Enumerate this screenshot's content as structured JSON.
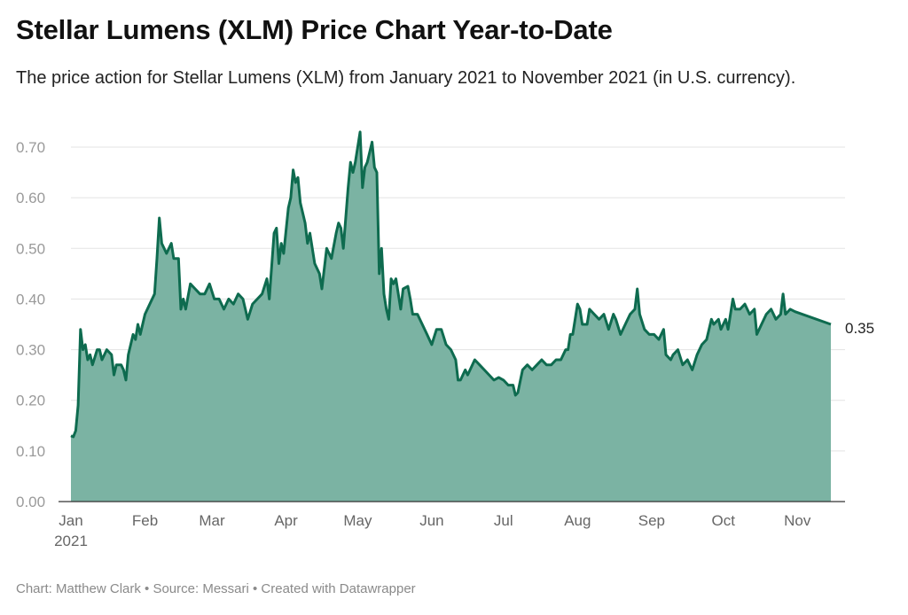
{
  "header": {
    "title": "Stellar Lumens (XLM) Price Chart Year-to-Date",
    "subtitle": "The price action for Stellar Lumens (XLM) from January 2021 to November 2021 (in U.S. currency)."
  },
  "footer": {
    "text": "Chart: Matthew Clark • Source: Messari • Created with Datawrapper"
  },
  "colors": {
    "line": "#0e6b4f",
    "area": "#7bb3a3",
    "grid": "#e3e3e3",
    "axis": "#333333"
  },
  "chart_data": {
    "type": "area",
    "title": "Stellar Lumens (XLM) Price Chart Year-to-Date",
    "xlabel": "",
    "ylabel": "",
    "ylim": [
      0,
      0.7
    ],
    "grid": true,
    "y_ticks": [
      0,
      0.1,
      0.2,
      0.3,
      0.4,
      0.5,
      0.6,
      0.7
    ],
    "y_tick_labels": [
      "0.00",
      "0.10",
      "0.20",
      "0.30",
      "0.40",
      "0.50",
      "0.60",
      "0.70"
    ],
    "x_ticks": [
      {
        "date": "2021-01-01",
        "label": "Jan",
        "sublabel": "2021"
      },
      {
        "date": "2021-02-01",
        "label": "Feb"
      },
      {
        "date": "2021-03-01",
        "label": "Mar"
      },
      {
        "date": "2021-04-01",
        "label": "Apr"
      },
      {
        "date": "2021-05-01",
        "label": "May"
      },
      {
        "date": "2021-06-01",
        "label": "Jun"
      },
      {
        "date": "2021-07-01",
        "label": "Jul"
      },
      {
        "date": "2021-08-01",
        "label": "Aug"
      },
      {
        "date": "2021-09-01",
        "label": "Sep"
      },
      {
        "date": "2021-10-01",
        "label": "Oct"
      },
      {
        "date": "2021-11-01",
        "label": "Nov"
      }
    ],
    "end_label": "0.35",
    "series": [
      {
        "points": [
          [
            "2021-01-01",
            0.13
          ],
          [
            "2021-01-02",
            0.128
          ],
          [
            "2021-01-03",
            0.14
          ],
          [
            "2021-01-04",
            0.19
          ],
          [
            "2021-01-05",
            0.34
          ],
          [
            "2021-01-06",
            0.3
          ],
          [
            "2021-01-07",
            0.31
          ],
          [
            "2021-01-08",
            0.28
          ],
          [
            "2021-01-09",
            0.29
          ],
          [
            "2021-01-10",
            0.27
          ],
          [
            "2021-01-12",
            0.3
          ],
          [
            "2021-01-13",
            0.3
          ],
          [
            "2021-01-14",
            0.28
          ],
          [
            "2021-01-16",
            0.3
          ],
          [
            "2021-01-18",
            0.29
          ],
          [
            "2021-01-19",
            0.25
          ],
          [
            "2021-01-20",
            0.27
          ],
          [
            "2021-01-22",
            0.27
          ],
          [
            "2021-01-23",
            0.26
          ],
          [
            "2021-01-24",
            0.24
          ],
          [
            "2021-01-25",
            0.29
          ],
          [
            "2021-01-27",
            0.33
          ],
          [
            "2021-01-28",
            0.32
          ],
          [
            "2021-01-29",
            0.35
          ],
          [
            "2021-01-30",
            0.33
          ],
          [
            "2021-02-01",
            0.37
          ],
          [
            "2021-02-03",
            0.39
          ],
          [
            "2021-02-05",
            0.41
          ],
          [
            "2021-02-06",
            0.48
          ],
          [
            "2021-02-07",
            0.56
          ],
          [
            "2021-02-08",
            0.51
          ],
          [
            "2021-02-10",
            0.49
          ],
          [
            "2021-02-12",
            0.51
          ],
          [
            "2021-02-13",
            0.48
          ],
          [
            "2021-02-15",
            0.48
          ],
          [
            "2021-02-16",
            0.38
          ],
          [
            "2021-02-17",
            0.4
          ],
          [
            "2021-02-18",
            0.38
          ],
          [
            "2021-02-20",
            0.43
          ],
          [
            "2021-02-22",
            0.42
          ],
          [
            "2021-02-24",
            0.41
          ],
          [
            "2021-02-26",
            0.41
          ],
          [
            "2021-02-28",
            0.43
          ],
          [
            "2021-03-02",
            0.4
          ],
          [
            "2021-03-04",
            0.4
          ],
          [
            "2021-03-06",
            0.38
          ],
          [
            "2021-03-08",
            0.4
          ],
          [
            "2021-03-10",
            0.39
          ],
          [
            "2021-03-12",
            0.41
          ],
          [
            "2021-03-14",
            0.4
          ],
          [
            "2021-03-16",
            0.36
          ],
          [
            "2021-03-18",
            0.39
          ],
          [
            "2021-03-20",
            0.4
          ],
          [
            "2021-03-22",
            0.41
          ],
          [
            "2021-03-24",
            0.44
          ],
          [
            "2021-03-25",
            0.4
          ],
          [
            "2021-03-27",
            0.53
          ],
          [
            "2021-03-28",
            0.54
          ],
          [
            "2021-03-29",
            0.47
          ],
          [
            "2021-03-30",
            0.51
          ],
          [
            "2021-03-31",
            0.49
          ],
          [
            "2021-04-02",
            0.58
          ],
          [
            "2021-04-03",
            0.6
          ],
          [
            "2021-04-04",
            0.655
          ],
          [
            "2021-04-05",
            0.63
          ],
          [
            "2021-04-06",
            0.64
          ],
          [
            "2021-04-07",
            0.59
          ],
          [
            "2021-04-09",
            0.55
          ],
          [
            "2021-04-10",
            0.51
          ],
          [
            "2021-04-11",
            0.53
          ],
          [
            "2021-04-13",
            0.47
          ],
          [
            "2021-04-15",
            0.45
          ],
          [
            "2021-04-16",
            0.42
          ],
          [
            "2021-04-18",
            0.5
          ],
          [
            "2021-04-20",
            0.48
          ],
          [
            "2021-04-22",
            0.53
          ],
          [
            "2021-04-23",
            0.55
          ],
          [
            "2021-04-24",
            0.54
          ],
          [
            "2021-04-25",
            0.5
          ],
          [
            "2021-04-27",
            0.62
          ],
          [
            "2021-04-28",
            0.67
          ],
          [
            "2021-04-29",
            0.65
          ],
          [
            "2021-04-30",
            0.67
          ],
          [
            "2021-05-02",
            0.73
          ],
          [
            "2021-05-03",
            0.62
          ],
          [
            "2021-05-04",
            0.66
          ],
          [
            "2021-05-05",
            0.67
          ],
          [
            "2021-05-06",
            0.69
          ],
          [
            "2021-05-07",
            0.71
          ],
          [
            "2021-05-08",
            0.66
          ],
          [
            "2021-05-09",
            0.65
          ],
          [
            "2021-05-10",
            0.45
          ],
          [
            "2021-05-11",
            0.5
          ],
          [
            "2021-05-12",
            0.41
          ],
          [
            "2021-05-13",
            0.38
          ],
          [
            "2021-05-14",
            0.36
          ],
          [
            "2021-05-15",
            0.44
          ],
          [
            "2021-05-16",
            0.43
          ],
          [
            "2021-05-17",
            0.44
          ],
          [
            "2021-05-18",
            0.41
          ],
          [
            "2021-05-19",
            0.38
          ],
          [
            "2021-05-20",
            0.42
          ],
          [
            "2021-05-22",
            0.425
          ],
          [
            "2021-05-23",
            0.4
          ],
          [
            "2021-05-24",
            0.37
          ],
          [
            "2021-05-26",
            0.37
          ],
          [
            "2021-05-28",
            0.35
          ],
          [
            "2021-05-30",
            0.33
          ],
          [
            "2021-06-01",
            0.31
          ],
          [
            "2021-06-03",
            0.34
          ],
          [
            "2021-06-05",
            0.34
          ],
          [
            "2021-06-07",
            0.31
          ],
          [
            "2021-06-09",
            0.3
          ],
          [
            "2021-06-11",
            0.28
          ],
          [
            "2021-06-12",
            0.24
          ],
          [
            "2021-06-13",
            0.24
          ],
          [
            "2021-06-15",
            0.26
          ],
          [
            "2021-06-16",
            0.25
          ],
          [
            "2021-06-17",
            0.26
          ],
          [
            "2021-06-19",
            0.28
          ],
          [
            "2021-06-21",
            0.27
          ],
          [
            "2021-06-23",
            0.26
          ],
          [
            "2021-06-25",
            0.25
          ],
          [
            "2021-06-27",
            0.24
          ],
          [
            "2021-06-29",
            0.245
          ],
          [
            "2021-07-01",
            0.24
          ],
          [
            "2021-07-03",
            0.23
          ],
          [
            "2021-07-05",
            0.23
          ],
          [
            "2021-07-06",
            0.21
          ],
          [
            "2021-07-07",
            0.215
          ],
          [
            "2021-07-09",
            0.26
          ],
          [
            "2021-07-11",
            0.27
          ],
          [
            "2021-07-13",
            0.26
          ],
          [
            "2021-07-15",
            0.27
          ],
          [
            "2021-07-17",
            0.28
          ],
          [
            "2021-07-19",
            0.27
          ],
          [
            "2021-07-21",
            0.27
          ],
          [
            "2021-07-23",
            0.28
          ],
          [
            "2021-07-25",
            0.28
          ],
          [
            "2021-07-27",
            0.3
          ],
          [
            "2021-07-28",
            0.3
          ],
          [
            "2021-07-29",
            0.33
          ],
          [
            "2021-07-30",
            0.33
          ],
          [
            "2021-08-01",
            0.39
          ],
          [
            "2021-08-02",
            0.38
          ],
          [
            "2021-08-03",
            0.35
          ],
          [
            "2021-08-05",
            0.35
          ],
          [
            "2021-08-06",
            0.38
          ],
          [
            "2021-08-08",
            0.37
          ],
          [
            "2021-08-10",
            0.36
          ],
          [
            "2021-08-12",
            0.37
          ],
          [
            "2021-08-14",
            0.34
          ],
          [
            "2021-08-16",
            0.37
          ],
          [
            "2021-08-17",
            0.36
          ],
          [
            "2021-08-19",
            0.33
          ],
          [
            "2021-08-21",
            0.35
          ],
          [
            "2021-08-23",
            0.37
          ],
          [
            "2021-08-25",
            0.38
          ],
          [
            "2021-08-26",
            0.42
          ],
          [
            "2021-08-27",
            0.37
          ],
          [
            "2021-08-29",
            0.34
          ],
          [
            "2021-08-31",
            0.33
          ],
          [
            "2021-09-02",
            0.33
          ],
          [
            "2021-09-04",
            0.32
          ],
          [
            "2021-09-06",
            0.34
          ],
          [
            "2021-09-07",
            0.29
          ],
          [
            "2021-09-09",
            0.28
          ],
          [
            "2021-09-10",
            0.29
          ],
          [
            "2021-09-12",
            0.3
          ],
          [
            "2021-09-14",
            0.27
          ],
          [
            "2021-09-16",
            0.28
          ],
          [
            "2021-09-18",
            0.26
          ],
          [
            "2021-09-20",
            0.29
          ],
          [
            "2021-09-22",
            0.31
          ],
          [
            "2021-09-24",
            0.32
          ],
          [
            "2021-09-26",
            0.36
          ],
          [
            "2021-09-27",
            0.35
          ],
          [
            "2021-09-29",
            0.36
          ],
          [
            "2021-09-30",
            0.34
          ],
          [
            "2021-10-02",
            0.36
          ],
          [
            "2021-10-03",
            0.34
          ],
          [
            "2021-10-05",
            0.4
          ],
          [
            "2021-10-06",
            0.38
          ],
          [
            "2021-10-08",
            0.38
          ],
          [
            "2021-10-10",
            0.39
          ],
          [
            "2021-10-12",
            0.37
          ],
          [
            "2021-10-14",
            0.38
          ],
          [
            "2021-10-15",
            0.33
          ],
          [
            "2021-10-17",
            0.35
          ],
          [
            "2021-10-19",
            0.37
          ],
          [
            "2021-10-21",
            0.38
          ],
          [
            "2021-10-23",
            0.36
          ],
          [
            "2021-10-25",
            0.37
          ],
          [
            "2021-10-26",
            0.41
          ],
          [
            "2021-10-27",
            0.37
          ],
          [
            "2021-10-29",
            0.38
          ],
          [
            "2021-10-31",
            0.375
          ],
          [
            "2021-11-01",
            0.35
          ]
        ]
      }
    ]
  }
}
